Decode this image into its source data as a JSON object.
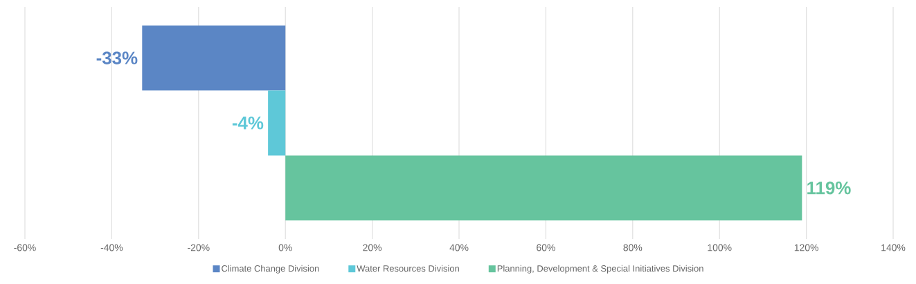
{
  "chart_data": {
    "type": "bar",
    "orientation": "horizontal",
    "categories": [
      null
    ],
    "series": [
      {
        "name": "Climate Change Division",
        "color": "#5b86c5",
        "values": [
          -33
        ],
        "value_labels": [
          "-33%"
        ]
      },
      {
        "name": "Water Resources Division",
        "color": "#5ec8d8",
        "values": [
          -4
        ],
        "value_labels": [
          "-4%"
        ]
      },
      {
        "name": "Planning, Development & Special Initiatives Division",
        "color": "#66c49e",
        "values": [
          119
        ],
        "value_labels": [
          "119%"
        ]
      }
    ],
    "xlim": [
      -60,
      140
    ],
    "xticks": [
      {
        "value": -60,
        "label": "-60%"
      },
      {
        "value": -40,
        "label": "-40%"
      },
      {
        "value": -20,
        "label": "-20%"
      },
      {
        "value": 0,
        "label": "0%"
      },
      {
        "value": 20,
        "label": "20%"
      },
      {
        "value": 40,
        "label": "40%"
      },
      {
        "value": 60,
        "label": "60%"
      },
      {
        "value": 80,
        "label": "80%"
      },
      {
        "value": 100,
        "label": "100%"
      },
      {
        "value": 120,
        "label": "120%"
      },
      {
        "value": 140,
        "label": "140%"
      }
    ],
    "grid": "x",
    "legend": "bottom"
  }
}
